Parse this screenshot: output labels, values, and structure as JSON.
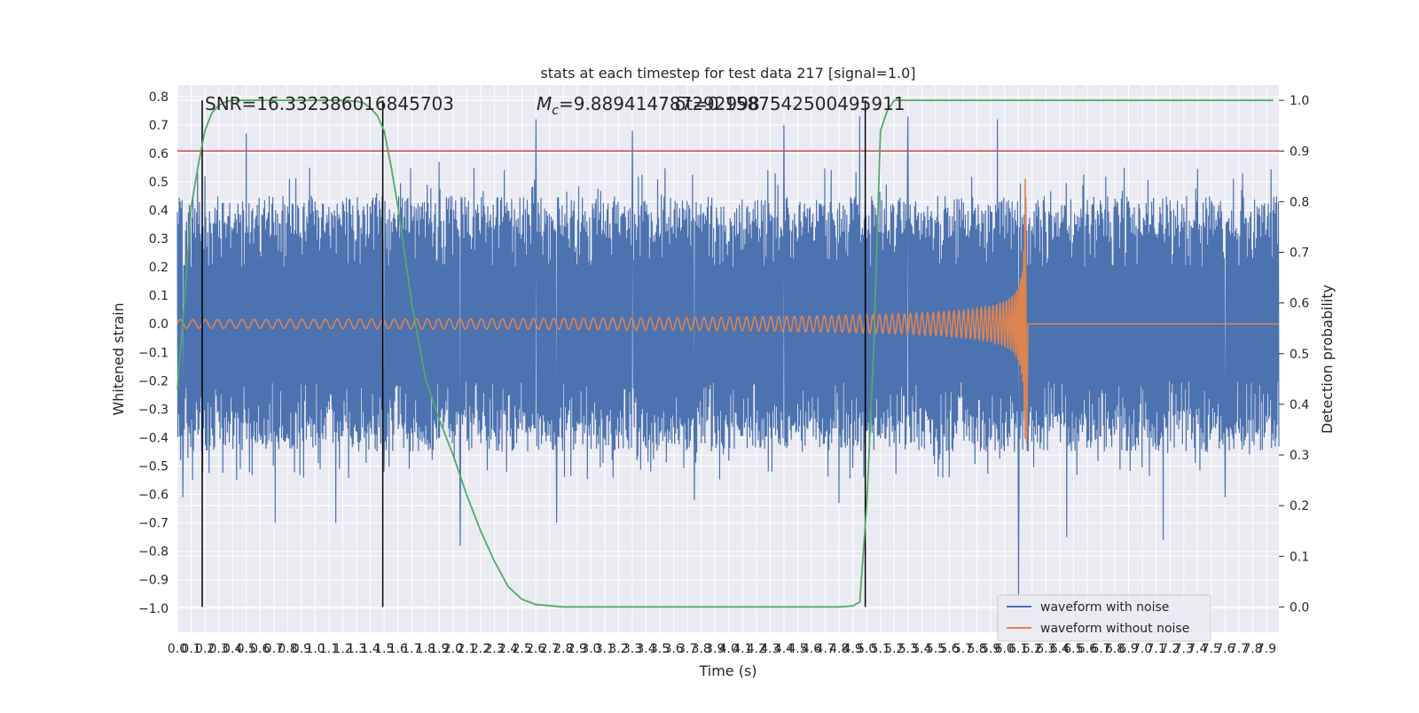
{
  "chart_data": {
    "type": "line",
    "title": "stats at each timestep for test data 217 [signal=1.0]",
    "xlabel": "Time (s)",
    "ylabel": "Whitened strain",
    "y2label": "Detection probability",
    "xlim": [
      0.0,
      7.99
    ],
    "ylim": [
      -1.085,
      0.84
    ],
    "y2lim": [
      -0.05,
      1.03
    ],
    "x_tick_step": 0.1,
    "x_tick_count": 80,
    "y_ticks": [
      -1.0,
      -0.9,
      -0.8,
      -0.7,
      -0.6,
      -0.5,
      -0.4,
      -0.3,
      -0.2,
      -0.1,
      0.0,
      0.1,
      0.2,
      0.3,
      0.4,
      0.5,
      0.6,
      0.7,
      0.8
    ],
    "y2_ticks": [
      0.0,
      0.1,
      0.2,
      0.3,
      0.4,
      0.5,
      0.6,
      0.7,
      0.8,
      0.9,
      1.0
    ],
    "grid": true,
    "legend_position": "lower-right",
    "threshold": {
      "value": 0.9,
      "axis": "right",
      "color": "#c44e52"
    },
    "vertical_markers": [
      0.18,
      1.49,
      4.99
    ],
    "annotations": {
      "snr": "SNR=16.332386016845703",
      "mc_prefix": "M",
      "mc_subscript": "c",
      "mc_value": "=9.889414787292998",
      "mc_overlap": "δt=0.1587542500495911"
    },
    "series": [
      {
        "name": "waveform with noise",
        "color": "#4c72b0",
        "axis": "left",
        "kind": "noise",
        "envelope": {
          "typical_high": 0.3,
          "typical_low": -0.3
        },
        "peaks": [
          {
            "x": 0.02,
            "y": 0.43
          },
          {
            "x": 0.04,
            "y": -0.61
          },
          {
            "x": 0.11,
            "y": -0.55
          },
          {
            "x": 0.2,
            "y": 0.52
          },
          {
            "x": 0.5,
            "y": 0.67
          },
          {
            "x": 0.71,
            "y": -0.7
          },
          {
            "x": 1.15,
            "y": -0.7
          },
          {
            "x": 0.96,
            "y": 0.55
          },
          {
            "x": 1.5,
            "y": -0.52
          },
          {
            "x": 1.9,
            "y": 0.57
          },
          {
            "x": 2.05,
            "y": -0.78
          },
          {
            "x": 2.6,
            "y": 0.72
          },
          {
            "x": 2.75,
            "y": -0.7
          },
          {
            "x": 3.3,
            "y": 0.68
          },
          {
            "x": 3.75,
            "y": -0.62
          },
          {
            "x": 4.4,
            "y": 0.7
          },
          {
            "x": 4.8,
            "y": -0.63
          },
          {
            "x": 4.95,
            "y": 0.73
          },
          {
            "x": 5.3,
            "y": 0.73
          },
          {
            "x": 5.95,
            "y": 0.72
          },
          {
            "x": 6.1,
            "y": -0.97
          },
          {
            "x": 6.45,
            "y": -0.75
          },
          {
            "x": 7.15,
            "y": -0.76
          },
          {
            "x": 7.6,
            "y": -0.61
          },
          {
            "x": 7.95,
            "y": -0.41
          }
        ]
      },
      {
        "name": "waveform without noise",
        "color": "#dd8452",
        "axis": "left",
        "kind": "chirp",
        "merger_time": 6.15,
        "peak_amplitude": 0.51,
        "min_amplitude": -0.42,
        "initial_amplitude": 0.015
      },
      {
        "name": "Detection probability",
        "color": "#55a868",
        "axis": "right",
        "x": [
          0.0,
          0.05,
          0.1,
          0.15,
          0.2,
          0.25,
          0.3,
          0.35,
          0.4,
          0.5,
          0.6,
          0.8,
          1.0,
          1.2,
          1.3,
          1.35,
          1.4,
          1.45,
          1.5,
          1.55,
          1.6,
          1.7,
          1.8,
          1.9,
          2.0,
          2.1,
          2.2,
          2.3,
          2.4,
          2.5,
          2.6,
          2.8,
          3.0,
          4.0,
          4.8,
          4.9,
          4.95,
          5.0,
          5.05,
          5.1,
          5.15,
          5.2,
          5.3,
          6.0,
          7.0,
          7.95
        ],
        "y": [
          0.43,
          0.6,
          0.79,
          0.87,
          0.94,
          0.975,
          0.99,
          0.997,
          1.0,
          1.0,
          1.0,
          1.0,
          1.0,
          1.0,
          0.998,
          0.995,
          0.985,
          0.97,
          0.94,
          0.87,
          0.79,
          0.6,
          0.45,
          0.37,
          0.3,
          0.22,
          0.15,
          0.09,
          0.04,
          0.015,
          0.005,
          0.0,
          0.0,
          0.0,
          0.0,
          0.002,
          0.01,
          0.2,
          0.5,
          0.94,
          0.98,
          1.0,
          1.0,
          1.0,
          1.0,
          1.0
        ]
      }
    ]
  }
}
